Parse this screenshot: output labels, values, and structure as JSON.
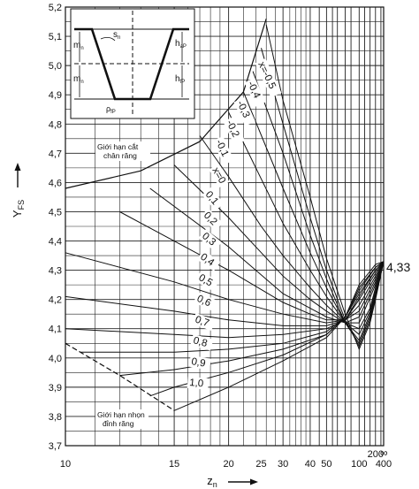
{
  "chart_data": {
    "type": "line",
    "xlabel": "z",
    "xlabel_sub": "n",
    "ylabel": "Y",
    "ylabel_sub": "FS",
    "y_ticks": [
      "3,7",
      "3,8",
      "3,9",
      "4,0",
      "4,1",
      "4,2",
      "4,3",
      "4,4",
      "4,5",
      "4,6",
      "4,7",
      "4,8",
      "4,9",
      "5,0",
      "5,1",
      "5,2"
    ],
    "x_ticks": [
      "10",
      "15",
      "20",
      "25",
      "30",
      "40",
      "50",
      "100",
      "200",
      "400"
    ],
    "x_scale": "reciprocal",
    "grid": true,
    "asymptote_label": "4,33",
    "infinity_label": "∞",
    "upper_limit_label": [
      "Giới hạn cắt",
      "chân răng"
    ],
    "lower_limit_label": [
      "Giới hạn nhọn",
      "đỉnh răng"
    ],
    "inset_labels": {
      "m": "m",
      "s": "s",
      "h_fP": "h",
      "h_aP": "h",
      "rho": "ρ"
    },
    "series": [
      {
        "name": "x = -0,5",
        "label": "x=-0,5",
        "values": [
          [
            26,
            5.14
          ],
          [
            30,
            4.88
          ],
          [
            40,
            4.55
          ],
          [
            50,
            4.34
          ],
          [
            70,
            4.15
          ],
          [
            100,
            4.03
          ],
          [
            150,
            4.12
          ],
          [
            200,
            4.2
          ],
          [
            400,
            4.33
          ]
        ]
      },
      {
        "name": "-0,4",
        "label": "-0,4",
        "values": [
          [
            25,
            5.06
          ],
          [
            30,
            4.8
          ],
          [
            40,
            4.48
          ],
          [
            50,
            4.3
          ],
          [
            70,
            4.13
          ],
          [
            100,
            4.04
          ],
          [
            150,
            4.13
          ],
          [
            200,
            4.21
          ],
          [
            400,
            4.33
          ]
        ]
      },
      {
        "name": "-0,3",
        "label": "-0,3",
        "values": [
          [
            23.5,
            4.98
          ],
          [
            30,
            4.7
          ],
          [
            40,
            4.42
          ],
          [
            50,
            4.27
          ],
          [
            70,
            4.12
          ],
          [
            100,
            4.05
          ],
          [
            150,
            4.14
          ],
          [
            200,
            4.22
          ],
          [
            400,
            4.33
          ]
        ]
      },
      {
        "name": "-0,2",
        "label": "-0,2",
        "values": [
          [
            22,
            4.91
          ],
          [
            30,
            4.58
          ],
          [
            40,
            4.36
          ],
          [
            50,
            4.24
          ],
          [
            70,
            4.12
          ],
          [
            100,
            4.06
          ],
          [
            150,
            4.15
          ],
          [
            200,
            4.22
          ],
          [
            400,
            4.33
          ]
        ]
      },
      {
        "name": "-0,1",
        "label": "-0,1",
        "values": [
          [
            20,
            4.84
          ],
          [
            30,
            4.46
          ],
          [
            40,
            4.3
          ],
          [
            50,
            4.21
          ],
          [
            70,
            4.12
          ],
          [
            100,
            4.08
          ],
          [
            150,
            4.16
          ],
          [
            200,
            4.23
          ],
          [
            400,
            4.33
          ]
        ]
      },
      {
        "name": "x = 0",
        "label": "x=0",
        "values": [
          [
            17,
            4.76
          ],
          [
            20,
            4.62
          ],
          [
            25,
            4.45
          ],
          [
            30,
            4.35
          ],
          [
            40,
            4.24
          ],
          [
            50,
            4.18
          ],
          [
            70,
            4.12
          ],
          [
            100,
            4.1
          ],
          [
            150,
            4.17
          ],
          [
            200,
            4.24
          ],
          [
            400,
            4.33
          ]
        ]
      },
      {
        "name": "0,1",
        "label": "0,1",
        "values": [
          [
            15,
            4.66
          ],
          [
            20,
            4.48
          ],
          [
            30,
            4.28
          ],
          [
            40,
            4.2
          ],
          [
            50,
            4.16
          ],
          [
            70,
            4.12
          ],
          [
            100,
            4.12
          ],
          [
            200,
            4.25
          ],
          [
            400,
            4.33
          ]
        ]
      },
      {
        "name": "0,2",
        "label": "0,2",
        "values": [
          [
            13.5,
            4.58
          ],
          [
            20,
            4.38
          ],
          [
            30,
            4.22
          ],
          [
            40,
            4.17
          ],
          [
            50,
            4.14
          ],
          [
            70,
            4.12
          ],
          [
            100,
            4.14
          ],
          [
            200,
            4.26
          ],
          [
            400,
            4.33
          ]
        ]
      },
      {
        "name": "0,3",
        "label": "0,3",
        "values": [
          [
            12,
            4.5
          ],
          [
            20,
            4.3
          ],
          [
            30,
            4.19
          ],
          [
            40,
            4.15
          ],
          [
            50,
            4.13
          ],
          [
            70,
            4.13
          ],
          [
            100,
            4.16
          ],
          [
            200,
            4.27
          ],
          [
            400,
            4.33
          ]
        ]
      },
      {
        "name": "0,4",
        "label": "0,4",
        "values": [
          [
            10,
            4.36
          ],
          [
            15,
            4.26
          ],
          [
            20,
            4.2
          ],
          [
            30,
            4.15
          ],
          [
            50,
            4.12
          ],
          [
            70,
            4.13
          ],
          [
            100,
            4.18
          ],
          [
            200,
            4.28
          ],
          [
            400,
            4.33
          ]
        ]
      },
      {
        "name": "0,5",
        "label": "0,5",
        "values": [
          [
            10,
            4.21
          ],
          [
            15,
            4.16
          ],
          [
            20,
            4.13
          ],
          [
            30,
            4.11
          ],
          [
            50,
            4.11
          ],
          [
            70,
            4.13
          ],
          [
            100,
            4.2
          ],
          [
            200,
            4.29
          ],
          [
            400,
            4.33
          ]
        ]
      },
      {
        "name": "0,6",
        "label": "0,6",
        "values": [
          [
            10,
            4.1
          ],
          [
            15,
            4.08
          ],
          [
            20,
            4.07
          ],
          [
            30,
            4.08
          ],
          [
            50,
            4.1
          ],
          [
            70,
            4.13
          ],
          [
            100,
            4.21
          ],
          [
            200,
            4.3
          ],
          [
            400,
            4.33
          ]
        ]
      },
      {
        "name": "0,7",
        "label": "0,7",
        "values": [
          [
            10.5,
            4.02
          ],
          [
            15,
            4.02
          ],
          [
            20,
            4.03
          ],
          [
            30,
            4.05
          ],
          [
            50,
            4.09
          ],
          [
            70,
            4.14
          ],
          [
            100,
            4.22
          ],
          [
            200,
            4.3
          ],
          [
            400,
            4.33
          ]
        ]
      },
      {
        "name": "0,8",
        "label": "0,8",
        "values": [
          [
            12,
            3.94
          ],
          [
            15,
            3.96
          ],
          [
            20,
            3.99
          ],
          [
            30,
            4.03
          ],
          [
            50,
            4.08
          ],
          [
            70,
            4.14
          ],
          [
            100,
            4.23
          ],
          [
            200,
            4.31
          ],
          [
            400,
            4.33
          ]
        ]
      },
      {
        "name": "0,9",
        "label": "0,9",
        "values": [
          [
            13.5,
            3.87
          ],
          [
            15,
            3.9
          ],
          [
            20,
            3.95
          ],
          [
            30,
            4.01
          ],
          [
            50,
            4.08
          ],
          [
            70,
            4.14
          ],
          [
            100,
            4.24
          ],
          [
            200,
            4.31
          ],
          [
            400,
            4.33
          ]
        ]
      },
      {
        "name": "1,0",
        "label": "1,0",
        "values": [
          [
            15,
            3.82
          ],
          [
            20,
            3.9
          ],
          [
            30,
            3.99
          ],
          [
            50,
            4.07
          ],
          [
            70,
            4.14
          ],
          [
            100,
            4.25
          ],
          [
            200,
            4.32
          ],
          [
            400,
            4.33
          ]
        ]
      }
    ],
    "limit_curves": [
      {
        "name": "upper",
        "values": [
          [
            10,
            4.58
          ],
          [
            13,
            4.64
          ],
          [
            17,
            4.74
          ],
          [
            22,
            4.91
          ],
          [
            26,
            5.16
          ]
        ]
      },
      {
        "name": "lower",
        "values": [
          [
            10,
            4.05
          ],
          [
            12,
            3.94
          ],
          [
            15,
            3.82
          ]
        ]
      }
    ]
  }
}
